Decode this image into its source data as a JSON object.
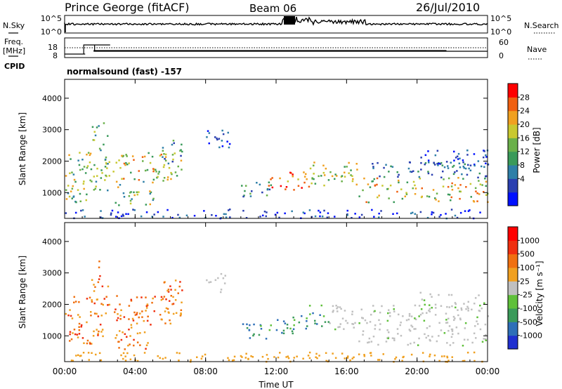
{
  "header": {
    "title": "Prince George (fitACF)",
    "beam": "Beam 06",
    "date": "26/Jul/2010"
  },
  "nsky_panel": {
    "left_label": "N.Sky",
    "right_label": "N.Search",
    "left_ticks": [
      "10^5",
      "10^0"
    ],
    "right_ticks": [
      "10^5",
      "10^0"
    ]
  },
  "freq_panel": {
    "left_label_line1": "Freq.",
    "left_label_line2": "[MHz]",
    "right_label": "Nave",
    "left_ticks": [
      "18",
      "8"
    ],
    "right_ticks": [
      "60",
      "0"
    ]
  },
  "cpid": {
    "label": "CPID",
    "value": "normalsound (fast) -157"
  },
  "chart_data": [
    {
      "type": "heatmap",
      "name": "power",
      "ylabel": "Slant Range [km]",
      "ylim": [
        180,
        4600
      ],
      "yticks": [
        "4000",
        "3000",
        "2000",
        "1000"
      ],
      "ytick_values": [
        4000,
        3000,
        2000,
        1000
      ],
      "colorbar": {
        "label": "Power [dB]",
        "ticks": [
          "28",
          "24",
          "20",
          "16",
          "12",
          "8",
          "4"
        ],
        "colors": [
          "#0010ff",
          "#2a3fb0",
          "#2e7fa8",
          "#3a9a5a",
          "#6ab04a",
          "#c8c830",
          "#f0a020",
          "#f06010",
          "#ff0000"
        ]
      }
    },
    {
      "type": "heatmap",
      "name": "velocity",
      "ylabel": "Slant Range [km]",
      "ylim": [
        180,
        4600
      ],
      "yticks": [
        "4000",
        "3000",
        "2000",
        "1000"
      ],
      "ytick_values": [
        4000,
        3000,
        2000,
        1000
      ],
      "colorbar": {
        "label": "Velocity [m s⁻¹]",
        "ticks": [
          "1000",
          "500",
          "100",
          "25",
          "-25",
          "-100",
          "-500",
          "-1000"
        ],
        "colors": [
          "#2030d0",
          "#2e6fb8",
          "#3a9a5a",
          "#5fc03a",
          "#c0c0c0",
          "#f0a020",
          "#f07010",
          "#f03010",
          "#ff0000"
        ]
      }
    }
  ],
  "xaxis": {
    "label": "Time UT",
    "ticks": [
      "00:00",
      "04:00",
      "08:00",
      "12:00",
      "16:00",
      "20:00",
      "00:00"
    ]
  }
}
